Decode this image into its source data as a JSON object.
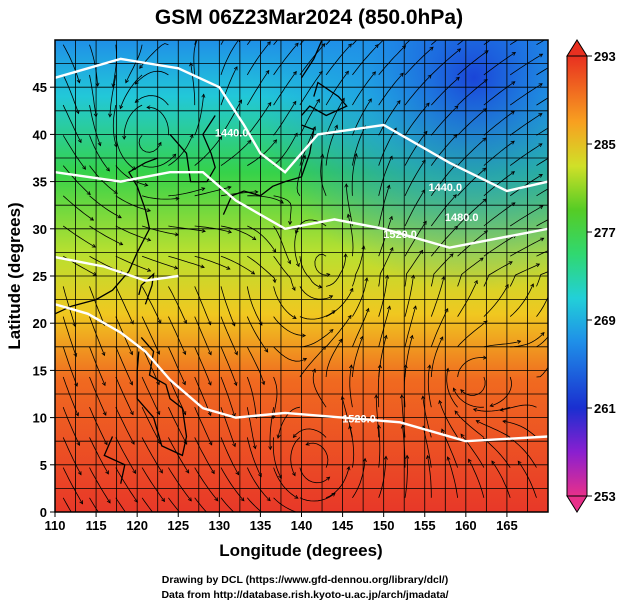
{
  "title": "GSM 06Z23Mar2024 (850.0hPa)",
  "x_axis": {
    "label": "Longitude (degrees)",
    "range": [
      110,
      170
    ],
    "ticks": [
      "110",
      "115",
      "120",
      "125",
      "130",
      "135",
      "140",
      "145",
      "150",
      "155",
      "160",
      "165"
    ]
  },
  "y_axis": {
    "label": "Latitude  (degrees)",
    "range": [
      0,
      50
    ],
    "ticks": [
      "0",
      "5",
      "10",
      "15",
      "20",
      "25",
      "30",
      "35",
      "40",
      "45"
    ]
  },
  "colorbar": {
    "range": [
      253,
      293
    ],
    "labels": [
      "293",
      "285",
      "277",
      "269",
      "261",
      "253"
    ],
    "colors": [
      "#e0308a",
      "#7a1fd0",
      "#1a2fd0",
      "#1f8fe8",
      "#22d0e0",
      "#2fd880",
      "#35c837",
      "#a8e030",
      "#f0d020",
      "#f8a020",
      "#f06020",
      "#e83020"
    ]
  },
  "contours": [
    {
      "label": "1440.0",
      "lon": 131.5,
      "lat": 39.8
    },
    {
      "label": "1440.0",
      "lon": 157.5,
      "lat": 34.0
    },
    {
      "label": "1480.0",
      "lon": 159.5,
      "lat": 30.8
    },
    {
      "label": "1520.0",
      "lon": 152.0,
      "lat": 29.0
    },
    {
      "label": "1520.0",
      "lon": 147.0,
      "lat": 9.5
    }
  ],
  "credits": {
    "line1": "Drawing by DCL (https://www.gfd-dennou.org/library/dcl/)",
    "line2": "Data from http://database.rish.kyoto-u.ac.jp/arch/jmadata/"
  }
}
